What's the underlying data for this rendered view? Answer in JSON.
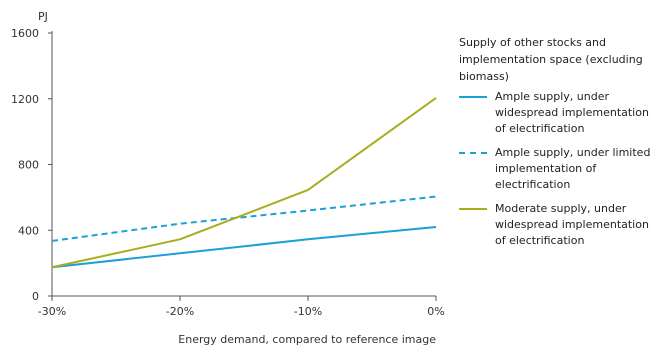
{
  "chart_data": {
    "type": "line",
    "ylabel": "PJ",
    "xlabel": "Energy demand, compared to reference image",
    "x": [
      "-30%",
      "-20%",
      "-10%",
      "0%"
    ],
    "xvalues": [
      -30,
      -20,
      -10,
      0
    ],
    "ylim": [
      0,
      1600
    ],
    "yticks": [
      0,
      400,
      800,
      1200,
      1600
    ],
    "grid": false,
    "legend_position": "right",
    "legend_title": "Supply of other stocks and implementation space (excluding biomass)",
    "series": [
      {
        "name": "Ample supply, under widespread implementation of electrification",
        "values": [
          175,
          260,
          345,
          420
        ],
        "color": "#1ba1d6",
        "style": "solid"
      },
      {
        "name": "Ample supply, under limited implementation of electrification",
        "values": [
          335,
          440,
          520,
          605
        ],
        "color": "#1ba1d6",
        "style": "dashed"
      },
      {
        "name": "Moderate supply, under widespread implementation of electrification",
        "values": [
          175,
          345,
          645,
          1205
        ],
        "color": "#a8ad1e",
        "style": "solid"
      }
    ]
  }
}
